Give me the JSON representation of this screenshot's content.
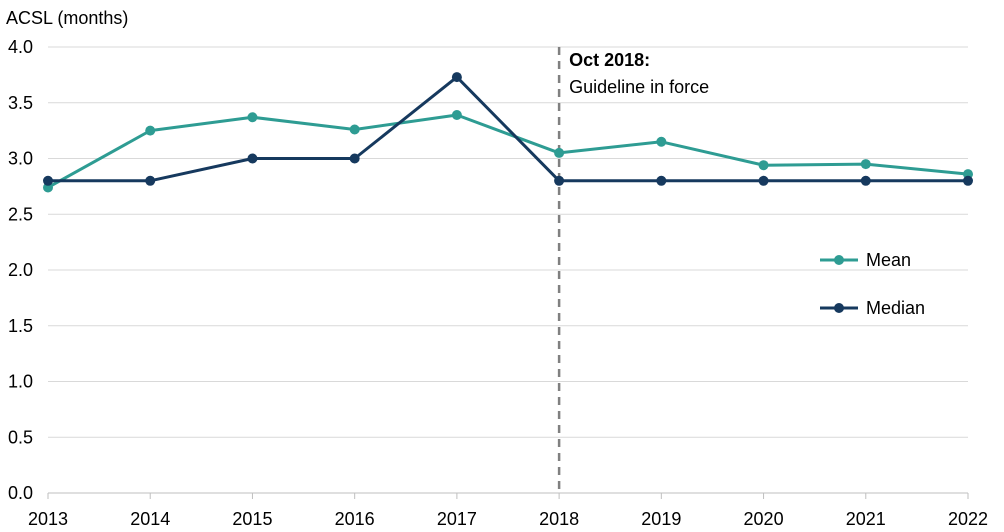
{
  "chart_data": {
    "type": "line",
    "ylabel": "ACSL (months)",
    "xlabel": "",
    "title": "",
    "categories": [
      "2013",
      "2014",
      "2015",
      "2016",
      "2017",
      "2018",
      "2019",
      "2020",
      "2021",
      "2022"
    ],
    "ylim": [
      0,
      4
    ],
    "yticks": [
      "0.0",
      "0.5",
      "1.0",
      "1.5",
      "2.0",
      "2.5",
      "3.0",
      "3.5",
      "4.0"
    ],
    "grid": true,
    "legend_position": "right",
    "series": [
      {
        "name": "Mean",
        "color": "#2e9c93",
        "values": [
          2.74,
          3.25,
          3.37,
          3.26,
          3.39,
          3.05,
          3.15,
          2.94,
          2.95,
          2.86
        ]
      },
      {
        "name": "Median",
        "color": "#16395e",
        "values": [
          2.8,
          2.8,
          3.0,
          3.0,
          3.73,
          2.8,
          2.8,
          2.8,
          2.8,
          2.8
        ]
      }
    ],
    "annotation": {
      "at_category": "2018",
      "title": "Oct 2018:",
      "text": "Guideline in force",
      "line_color": "#808080"
    }
  }
}
